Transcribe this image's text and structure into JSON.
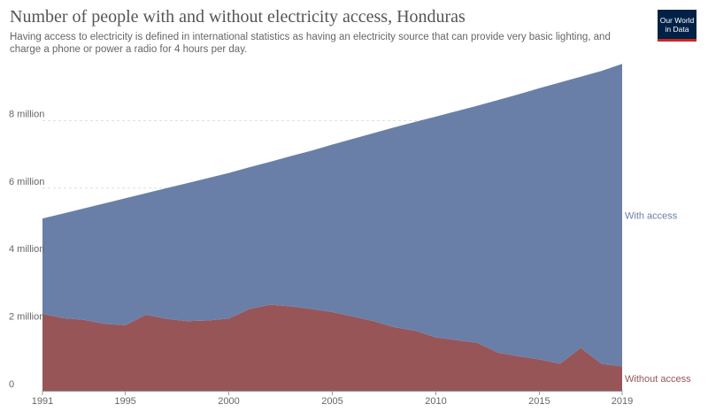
{
  "title": "Number of people with and without electricity access, Honduras",
  "subtitle": "Having access to electricity is defined in international statistics as having an electricity source that can provide very basic lighting, and charge a phone or power a radio for 4 hours per day.",
  "logo": {
    "line1": "Our World",
    "line2": "in Data"
  },
  "colors": {
    "with_access": "#6a7fa8",
    "without_access": "#975558",
    "grid": "#dddddd"
  },
  "chart_data": {
    "type": "area",
    "stacked": true,
    "x": [
      1991,
      1992,
      1993,
      1994,
      1995,
      1996,
      1997,
      1998,
      1999,
      2000,
      2001,
      2002,
      2003,
      2004,
      2005,
      2006,
      2007,
      2008,
      2009,
      2010,
      2011,
      2012,
      2013,
      2014,
      2015,
      2016,
      2017,
      2018,
      2019
    ],
    "series": [
      {
        "name": "Without access",
        "values": [
          2.28,
          2.15,
          2.1,
          1.98,
          1.94,
          2.25,
          2.13,
          2.06,
          2.08,
          2.14,
          2.42,
          2.55,
          2.5,
          2.42,
          2.33,
          2.2,
          2.06,
          1.88,
          1.78,
          1.58,
          1.5,
          1.42,
          1.13,
          1.02,
          0.93,
          0.8,
          1.27,
          0.8,
          0.72
        ]
      },
      {
        "name": "With access",
        "values": [
          2.82,
          3.1,
          3.3,
          3.57,
          3.76,
          3.6,
          3.87,
          4.09,
          4.22,
          4.31,
          4.2,
          4.23,
          4.45,
          4.69,
          4.96,
          5.26,
          5.57,
          5.92,
          6.18,
          6.54,
          6.78,
          7.02,
          7.48,
          7.76,
          8.03,
          8.33,
          8.03,
          8.67,
          8.96
        ]
      }
    ],
    "y_ticks": [
      {
        "value": 0,
        "label": "0"
      },
      {
        "value": 2,
        "label": "2 million"
      },
      {
        "value": 4,
        "label": "4 million"
      },
      {
        "value": 6,
        "label": "6 million"
      },
      {
        "value": 8,
        "label": "8 million"
      }
    ],
    "x_ticks": [
      1991,
      1995,
      2000,
      2005,
      2010,
      2015,
      2019
    ],
    "ylim": [
      0,
      10
    ],
    "xlim": [
      1991,
      2019
    ],
    "unit": "million",
    "grid": "horizontal-dashed",
    "legend": "right-inline",
    "xlabel": "",
    "ylabel": ""
  }
}
